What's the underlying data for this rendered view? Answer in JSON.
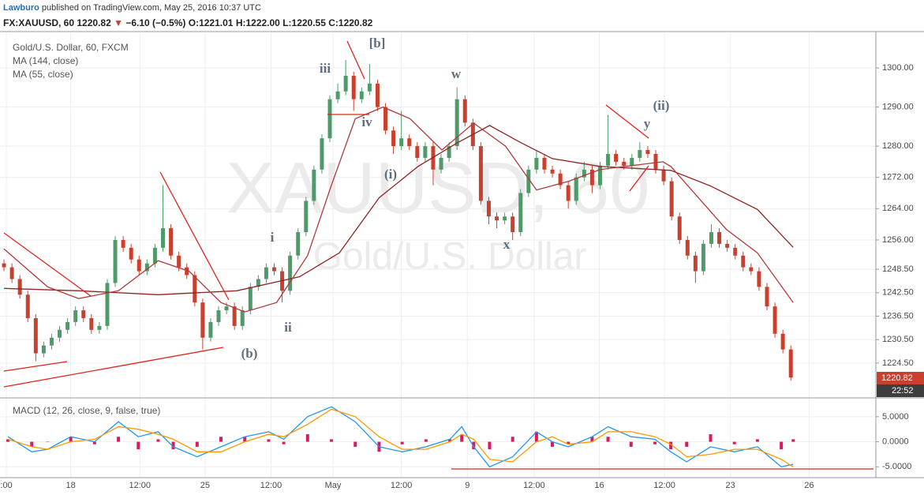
{
  "header": {
    "author": "Lawburo",
    "published": "published on TradingView.com, May 25, 2016 10:37 UTC",
    "symbol": "FX:XAUUSD, 60",
    "last": "1220.82",
    "arrow": "▼",
    "change": "−6.10 (−0.5%)",
    "open": "O:1221.01",
    "high": "H:1222.00",
    "low": "L:1220.55",
    "close": "C:1220.82"
  },
  "chart_data": [
    {
      "type": "candlestick",
      "title": "Gold/U.S. Dollar, 60, FXCM",
      "watermark": "XAUUSD, 60",
      "watermark_subtitle": "Gold/U.S. Dollar",
      "open": [
        1250,
        1249,
        1246,
        1242,
        1236,
        1227,
        1229,
        1231,
        1233,
        1235,
        1238,
        1236,
        1233,
        1234,
        1245,
        1256,
        1254,
        1251,
        1248,
        1250,
        1254,
        1259,
        1252,
        1249,
        1247,
        1240,
        1231,
        1235,
        1238,
        1239,
        1234,
        1238,
        1244,
        1246,
        1249,
        1248,
        1243,
        1252,
        1258,
        1266,
        1274,
        1282,
        1292,
        1294,
        1298,
        1292,
        1294,
        1296,
        1290,
        1284,
        1280,
        1282,
        1280,
        1277,
        1280,
        1274,
        1277,
        1280,
        1292,
        1286,
        1280,
        1266,
        1262,
        1261,
        1262,
        1258,
        1268,
        1274,
        1277,
        1274,
        1273,
        1270,
        1266,
        1272,
        1274,
        1270,
        1275,
        1278,
        1276,
        1275,
        1277,
        1279,
        1278,
        1274,
        1271,
        1262,
        1256,
        1252,
        1248,
        1255,
        1258,
        1255,
        1254,
        1252,
        1249,
        1248,
        1244,
        1239,
        1232,
        1228
      ],
      "high": [
        1251,
        1250,
        1247,
        1243,
        1237,
        1230,
        1232,
        1234,
        1236,
        1239,
        1239,
        1237,
        1235,
        1246,
        1257,
        1257,
        1255,
        1252,
        1251,
        1255,
        1270,
        1260,
        1253,
        1250,
        1248,
        1241,
        1236,
        1239,
        1240,
        1240,
        1239,
        1245,
        1247,
        1250,
        1250,
        1249,
        1253,
        1259,
        1267,
        1275,
        1283,
        1293,
        1296,
        1302,
        1299,
        1295,
        1301,
        1297,
        1291,
        1285,
        1289,
        1283,
        1281,
        1281,
        1281,
        1278,
        1281,
        1295,
        1293,
        1287,
        1281,
        1267,
        1263,
        1263,
        1263,
        1269,
        1275,
        1279,
        1278,
        1275,
        1274,
        1271,
        1273,
        1276,
        1275,
        1276,
        1288,
        1279,
        1277,
        1278,
        1281,
        1280,
        1279,
        1275,
        1272,
        1263,
        1257,
        1253,
        1256,
        1260,
        1259,
        1256,
        1255,
        1253,
        1250,
        1249,
        1245,
        1240,
        1233,
        1229
      ],
      "low": [
        1248,
        1245,
        1241,
        1235,
        1225,
        1226,
        1228,
        1230,
        1232,
        1234,
        1235,
        1232,
        1232,
        1233,
        1244,
        1253,
        1250,
        1247,
        1247,
        1249,
        1253,
        1251,
        1248,
        1246,
        1239,
        1228,
        1230,
        1234,
        1237,
        1233,
        1233,
        1237,
        1243,
        1245,
        1247,
        1240,
        1242,
        1251,
        1257,
        1265,
        1273,
        1281,
        1291,
        1293,
        1289,
        1291,
        1293,
        1289,
        1283,
        1278,
        1279,
        1279,
        1276,
        1276,
        1270,
        1273,
        1276,
        1279,
        1285,
        1279,
        1265,
        1260,
        1259,
        1260,
        1256,
        1257,
        1267,
        1273,
        1273,
        1272,
        1269,
        1264,
        1265,
        1271,
        1268,
        1269,
        1274,
        1275,
        1274,
        1274,
        1276,
        1277,
        1273,
        1270,
        1261,
        1255,
        1251,
        1245,
        1247,
        1254,
        1254,
        1253,
        1251,
        1248,
        1247,
        1243,
        1238,
        1231,
        1227,
        1220
      ],
      "close": [
        1249,
        1246,
        1242,
        1236,
        1227,
        1229,
        1231,
        1233,
        1235,
        1238,
        1236,
        1233,
        1234,
        1245,
        1256,
        1254,
        1251,
        1248,
        1250,
        1254,
        1259,
        1252,
        1249,
        1247,
        1240,
        1231,
        1235,
        1238,
        1239,
        1234,
        1238,
        1244,
        1246,
        1249,
        1248,
        1243,
        1252,
        1258,
        1266,
        1274,
        1282,
        1292,
        1294,
        1298,
        1292,
        1294,
        1296,
        1290,
        1284,
        1280,
        1282,
        1280,
        1277,
        1280,
        1274,
        1277,
        1280,
        1292,
        1286,
        1280,
        1266,
        1262,
        1261,
        1262,
        1258,
        1268,
        1274,
        1277,
        1274,
        1273,
        1270,
        1266,
        1272,
        1274,
        1270,
        1275,
        1278,
        1276,
        1275,
        1277,
        1279,
        1278,
        1274,
        1271,
        1262,
        1256,
        1252,
        1248,
        1255,
        1258,
        1255,
        1254,
        1252,
        1249,
        1248,
        1244,
        1239,
        1232,
        1228,
        1220.82
      ],
      "up_color": "#4f9a6a",
      "down_color": "#c9412e",
      "series": [
        {
          "name": "MA (144, close)",
          "color": "#8e2424",
          "x": [
            0.5,
            9.9,
            19.9,
            29.8,
            37.7,
            42.7,
            47.7,
            52.6,
            57.6,
            61.6,
            65.5,
            69.5,
            75.5,
            84.4,
            89.4,
            95.3,
            99.8
          ],
          "values": [
            1243.6,
            1243,
            1242,
            1243,
            1246.6,
            1252.7,
            1266.8,
            1274.8,
            1280.9,
            1285.3,
            1280.9,
            1276.8,
            1274.8,
            1273.8,
            1269.8,
            1263.8,
            1254.1
          ]
        },
        {
          "name": "MA (55, close)",
          "color": "#b03a3a",
          "x": [
            0.5,
            6,
            9.9,
            14.9,
            19.9,
            23.8,
            27.8,
            30.8,
            34.8,
            38.7,
            41.7,
            44.7,
            48.2,
            51.6,
            55.6,
            59.6,
            63.6,
            67.5,
            71.5,
            75.5,
            79.4,
            83.4,
            84.4,
            91.4,
            95.3,
            99.8
          ],
          "values": [
            1253.7,
            1244,
            1241,
            1243,
            1250.7,
            1248,
            1240,
            1237.6,
            1240,
            1252,
            1270,
            1287,
            1290,
            1287,
            1279,
            1285.9,
            1280,
            1268.8,
            1271,
            1274,
            1275,
            1276,
            1274.8,
            1258.7,
            1252.7,
            1240
          ]
        }
      ],
      "xlim": [
        0,
        110.2
      ],
      "xticks": [
        {
          "value": 0.8,
          "label": ":00"
        },
        {
          "value": 8.9,
          "label": "18"
        },
        {
          "value": 17.6,
          "label": "12:00"
        },
        {
          "value": 25.8,
          "label": "25"
        },
        {
          "value": 34.1,
          "label": "12:00"
        },
        {
          "value": 41.9,
          "label": "May"
        },
        {
          "value": 50.5,
          "label": "12:00"
        },
        {
          "value": 58.8,
          "label": "9"
        },
        {
          "value": 67.2,
          "label": "12:00"
        },
        {
          "value": 75.4,
          "label": "16"
        },
        {
          "value": 83.6,
          "label": "12:00"
        },
        {
          "value": 91.9,
          "label": "23"
        },
        {
          "value": 101.8,
          "label": "26"
        }
      ],
      "ylim": [
        1215.8,
        1309.1
      ],
      "yticks": [
        {
          "value": 1224.5,
          "label": "1224.50"
        },
        {
          "value": 1230.5,
          "label": "1230.50"
        },
        {
          "value": 1236.5,
          "label": "1236.50"
        },
        {
          "value": 1242.5,
          "label": "1242.50"
        },
        {
          "value": 1248.5,
          "label": "1248.50"
        },
        {
          "value": 1256,
          "label": "1256.00"
        },
        {
          "value": 1264,
          "label": "1264.00"
        },
        {
          "value": 1272,
          "label": "1272.00"
        },
        {
          "value": 1280,
          "label": "1280.00"
        },
        {
          "value": 1290,
          "label": "1290.00"
        },
        {
          "value": 1300,
          "label": "1300.00"
        }
      ],
      "grid": true,
      "annotations": [
        "[b]",
        "iii",
        "iv",
        "w",
        "(ii)",
        "y",
        "(i)",
        "x",
        "i",
        "ii",
        "(b)"
      ],
      "last_price_label": "1220.82",
      "countdown_label": "22:52"
    },
    {
      "type": "macd",
      "title": "MACD (12, 26, close, 9, false, true)",
      "x": [
        1,
        4,
        6,
        8.9,
        11.9,
        14.9,
        17.4,
        19.9,
        21.8,
        24.8,
        27.8,
        30.8,
        33.8,
        35.7,
        38.7,
        41.7,
        44.7,
        47.7,
        50.6,
        53.6,
        56.6,
        58.1,
        59.6,
        61.6,
        64.5,
        67.5,
        69.5,
        71.5,
        74.5,
        76.5,
        79.4,
        82.4,
        84.4,
        86.4,
        89.4,
        92.4,
        95.3,
        98.3,
        99.8
      ],
      "histogram": {
        "color": "#d81b60",
        "values": [
          0.5,
          -1,
          0,
          1,
          -0.5,
          1,
          -1.5,
          0.5,
          -1.5,
          -1,
          1,
          1,
          0.5,
          -0.5,
          1.5,
          0.5,
          -1,
          -2,
          -0.5,
          0.5,
          0.5,
          1.5,
          -1.5,
          -1.5,
          1,
          2,
          -1,
          -0.5,
          1,
          1,
          -1,
          -0.5,
          -1.5,
          -1,
          1.5,
          -0.5,
          0.5,
          -1.5,
          0.5
        ]
      },
      "series": [
        {
          "color": "#2196f3",
          "values": [
            1,
            -2,
            -1.5,
            1,
            0,
            4,
            1,
            2,
            -1,
            -3,
            -1,
            1,
            2,
            0.5,
            5,
            7,
            4,
            -1,
            -2,
            -1,
            0.5,
            3,
            -1,
            -5,
            -3,
            2,
            0,
            -1,
            1,
            3,
            1,
            0.5,
            -2,
            -4,
            -1,
            -2,
            -1,
            -5,
            -4.5
          ]
        },
        {
          "color": "#ff9800",
          "values": [
            0.5,
            -1,
            -1.5,
            0,
            0.5,
            3,
            2.5,
            1.5,
            0.5,
            -2,
            -2,
            0,
            1.5,
            1,
            3.5,
            6.5,
            5,
            1,
            -1.5,
            -1.5,
            0,
            1.5,
            0.5,
            -3.5,
            -4,
            0,
            1,
            -0.5,
            0,
            2,
            2,
            1,
            -0.5,
            -3,
            -2.5,
            -1.5,
            -1.5,
            -3.5,
            -5
          ]
        }
      ],
      "xlim": [
        0,
        110.2
      ],
      "ylim": [
        -7.0,
        8.6
      ],
      "yticks": [
        {
          "value": 5,
          "label": "5.0000"
        },
        {
          "value": 0,
          "label": "0.0000"
        },
        {
          "value": -5,
          "label": "-5.0000"
        }
      ],
      "grid": true
    }
  ]
}
